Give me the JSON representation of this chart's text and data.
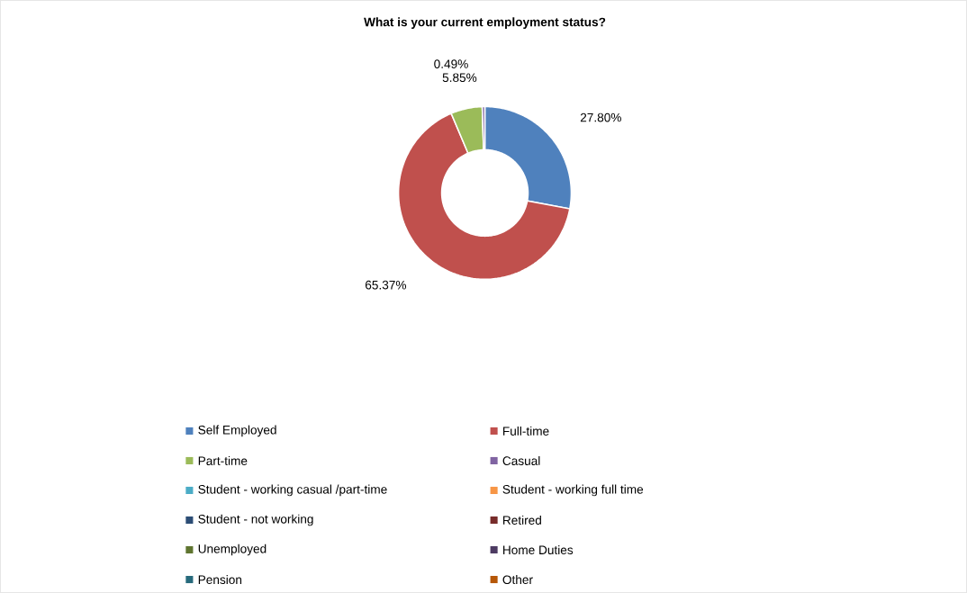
{
  "chart_data": {
    "type": "donut",
    "title": "What is your current employment status?",
    "categories": [
      "Self Employed",
      "Full-time",
      "Part-time",
      "Casual",
      "Student - working casual /part-time",
      "Student - working full time",
      "Student - not working",
      "Retired",
      "Unemployed",
      "Home Duties",
      "Pension",
      "Other"
    ],
    "values": [
      27.8,
      65.37,
      5.85,
      0.49,
      0,
      0,
      0,
      0,
      0,
      0,
      0,
      0
    ],
    "value_labels": [
      "27.80%",
      "65.37%",
      "5.85%",
      "0.49%",
      null,
      null,
      null,
      null,
      null,
      null,
      null,
      null
    ],
    "colors": [
      "#4f81bd",
      "#c0504d",
      "#9bbb59",
      "#8064a2",
      "#4bacc6",
      "#f79646",
      "#2c4d75",
      "#772c2a",
      "#5f7530",
      "#4d3b62",
      "#276a7c",
      "#b65708"
    ],
    "legend": "bottom"
  }
}
